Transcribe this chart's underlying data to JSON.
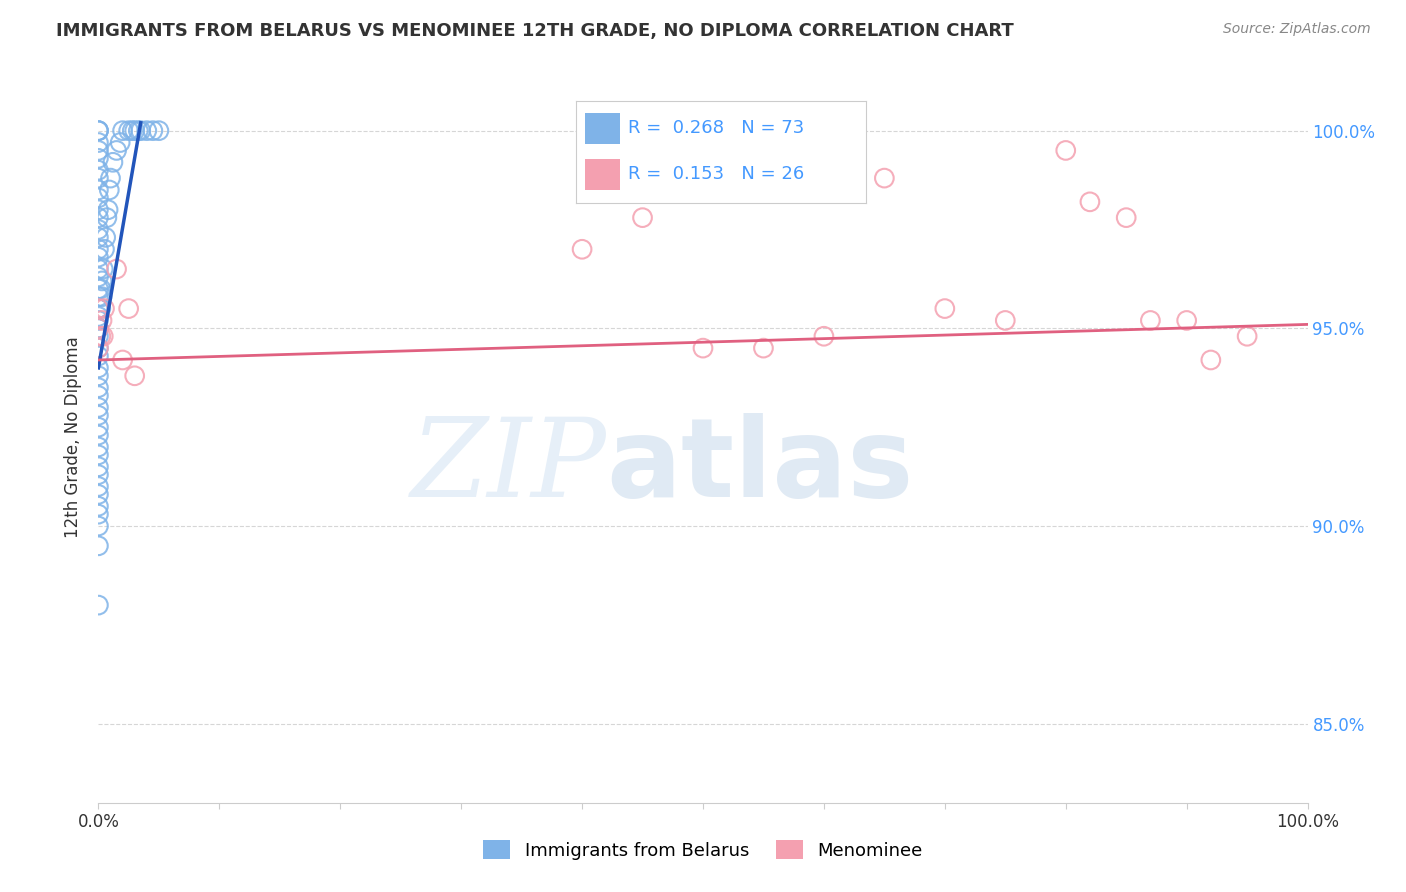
{
  "title": "IMMIGRANTS FROM BELARUS VS MENOMINEE 12TH GRADE, NO DIPLOMA CORRELATION CHART",
  "source": "Source: ZipAtlas.com",
  "ylabel": "12th Grade, No Diploma",
  "blue_R": 0.268,
  "blue_N": 73,
  "pink_R": 0.153,
  "pink_N": 26,
  "blue_color": "#7FB3E8",
  "pink_color": "#F4A0B0",
  "blue_line_color": "#2255BB",
  "pink_line_color": "#E06080",
  "legend_label_blue": "Immigrants from Belarus",
  "legend_label_pink": "Menominee",
  "blue_x": [
    0.0,
    0.0,
    0.0,
    0.0,
    0.0,
    0.0,
    0.0,
    0.0,
    0.0,
    0.0,
    0.0,
    0.0,
    0.0,
    0.0,
    0.0,
    0.0,
    0.0,
    0.0,
    0.0,
    0.0,
    0.0,
    0.0,
    0.0,
    0.0,
    0.0,
    0.0,
    0.0,
    0.0,
    0.0,
    0.0,
    0.0,
    0.0,
    0.0,
    0.0,
    0.0,
    0.0,
    0.0,
    0.0,
    0.0,
    0.0,
    0.0,
    0.0,
    0.0,
    0.0,
    0.0,
    0.0,
    0.0,
    0.0,
    0.0,
    0.0,
    0.002,
    0.002,
    0.003,
    0.003,
    0.004,
    0.005,
    0.006,
    0.007,
    0.008,
    0.009,
    0.01,
    0.012,
    0.015,
    0.018,
    0.02,
    0.025,
    0.028,
    0.03,
    0.033,
    0.035,
    0.04,
    0.045,
    0.05
  ],
  "blue_y": [
    100.0,
    100.0,
    100.0,
    99.7,
    99.5,
    99.3,
    99.0,
    98.8,
    98.5,
    98.3,
    98.0,
    97.8,
    97.5,
    97.3,
    97.0,
    96.8,
    96.5,
    96.3,
    96.0,
    95.8,
    95.5,
    95.5,
    95.5,
    95.3,
    95.2,
    95.0,
    95.0,
    95.0,
    94.8,
    94.5,
    94.3,
    94.0,
    93.8,
    93.5,
    93.3,
    93.0,
    92.8,
    92.5,
    92.3,
    92.0,
    91.8,
    91.5,
    91.3,
    91.0,
    90.8,
    90.5,
    90.3,
    90.0,
    89.5,
    88.0,
    96.0,
    95.5,
    96.2,
    95.8,
    96.5,
    97.0,
    97.3,
    97.8,
    98.0,
    98.5,
    98.8,
    99.2,
    99.5,
    99.7,
    100.0,
    100.0,
    100.0,
    100.0,
    100.0,
    100.0,
    100.0,
    100.0,
    100.0
  ],
  "pink_x": [
    0.0,
    0.0,
    0.0,
    0.002,
    0.003,
    0.004,
    0.005,
    0.015,
    0.02,
    0.025,
    0.03,
    0.4,
    0.45,
    0.5,
    0.55,
    0.6,
    0.65,
    0.7,
    0.75,
    0.8,
    0.82,
    0.85,
    0.87,
    0.9,
    0.92,
    0.95
  ],
  "pink_y": [
    95.5,
    95.0,
    94.5,
    94.8,
    95.2,
    94.8,
    95.5,
    96.5,
    94.2,
    95.5,
    93.8,
    97.0,
    97.8,
    94.5,
    94.5,
    94.8,
    98.8,
    95.5,
    95.2,
    99.5,
    98.2,
    97.8,
    95.2,
    95.2,
    94.2,
    94.8
  ],
  "blue_trend_x": [
    0.0,
    0.035
  ],
  "blue_trend_y": [
    94.0,
    100.2
  ],
  "pink_trend_x": [
    0.0,
    1.0
  ],
  "pink_trend_y": [
    94.2,
    95.1
  ],
  "xlim": [
    0.0,
    1.0
  ],
  "ylim": [
    83.0,
    101.5
  ],
  "yticks": [
    85.0,
    90.0,
    95.0,
    100.0
  ],
  "xtick_positions": [
    0.0,
    0.1,
    0.2,
    0.3,
    0.4,
    0.5,
    0.6,
    0.7,
    0.8,
    0.9,
    1.0
  ],
  "xtick_labels": [
    "0.0%",
    "",
    "",
    "",
    "",
    "",
    "",
    "",
    "",
    "",
    "100.0%"
  ],
  "ytick_labels_right": [
    "85.0%",
    "90.0%",
    "95.0%",
    "100.0%"
  ],
  "grid_color": "#CCCCCC",
  "bg_color": "#FFFFFF",
  "text_color": "#333333",
  "right_tick_color": "#4499FF",
  "source_color": "#888888",
  "title_fontsize": 13,
  "source_fontsize": 10,
  "tick_fontsize": 12,
  "ylabel_fontsize": 12,
  "legend_fontsize": 13,
  "scatter_size": 180,
  "scatter_lw": 1.5,
  "trend_lw": 2.0
}
